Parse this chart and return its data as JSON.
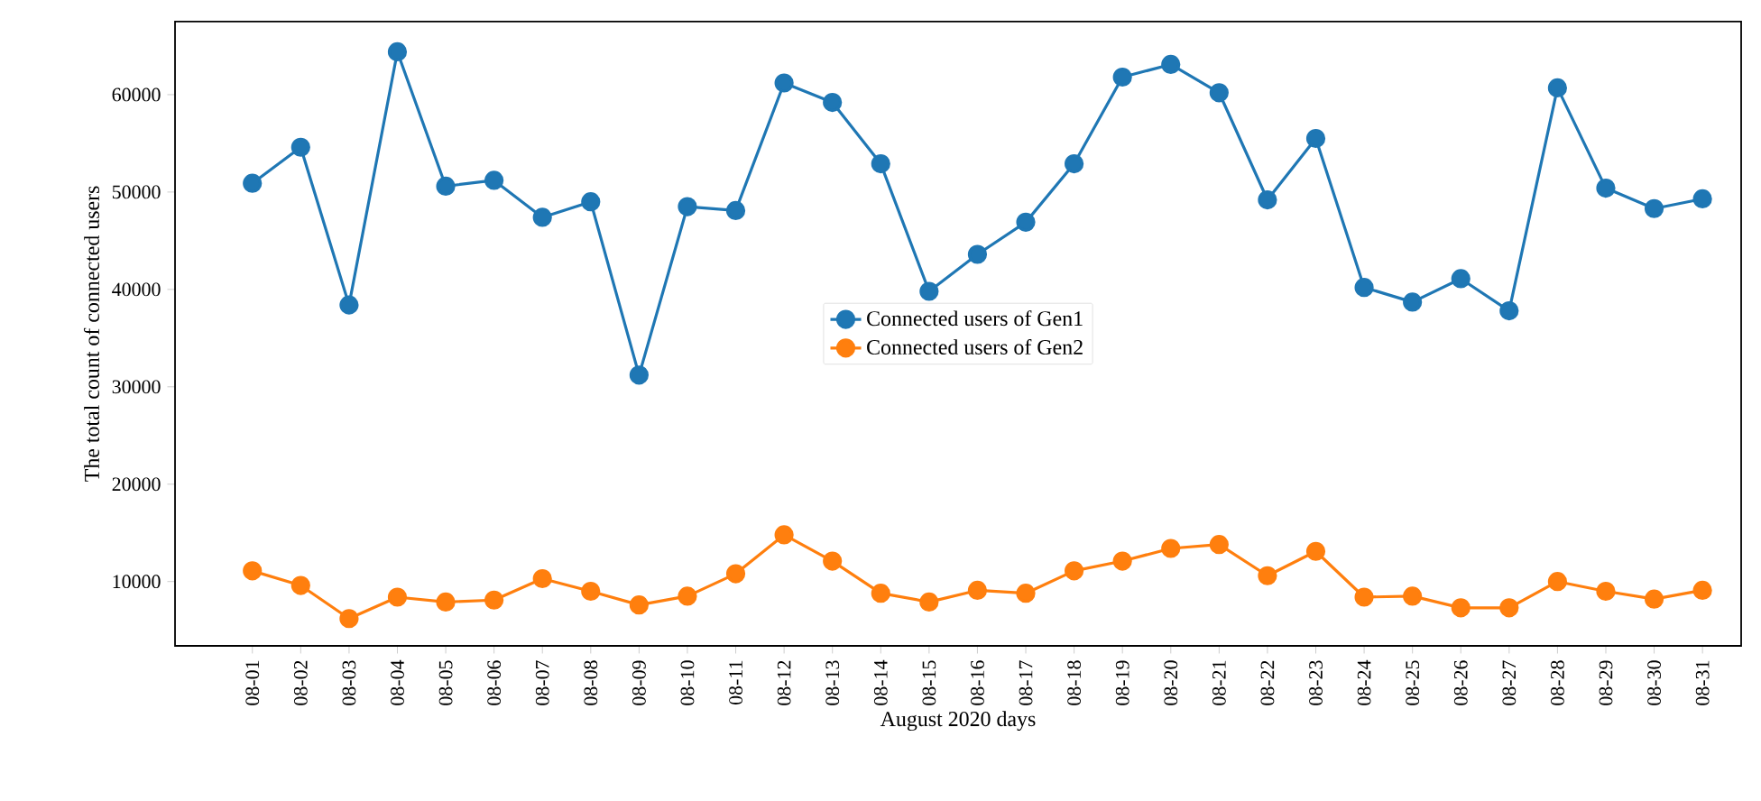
{
  "chart_data": {
    "type": "line",
    "xlabel": "August 2020 days",
    "ylabel": "The total count of connected users",
    "categories": [
      "08-01",
      "08-02",
      "08-03",
      "08-04",
      "08-05",
      "08-06",
      "08-07",
      "08-08",
      "08-09",
      "08-10",
      "08-11",
      "08-12",
      "08-13",
      "08-14",
      "08-15",
      "08-16",
      "08-17",
      "08-18",
      "08-19",
      "08-20",
      "08-21",
      "08-22",
      "08-23",
      "08-24",
      "08-25",
      "08-26",
      "08-27",
      "08-28",
      "08-29",
      "08-30",
      "08-31"
    ],
    "series": [
      {
        "name": "Connected users of Gen1",
        "color": "#1f77b4",
        "values": [
          50900,
          54600,
          38400,
          64400,
          50600,
          51200,
          47400,
          49000,
          31200,
          48500,
          48100,
          61200,
          59200,
          52900,
          39800,
          43600,
          46900,
          52900,
          61800,
          63100,
          60200,
          49200,
          55500,
          40200,
          38700,
          41100,
          37800,
          60700,
          50400,
          48300,
          49300
        ]
      },
      {
        "name": "Connected users of Gen2",
        "color": "#ff7f0e",
        "values": [
          11100,
          9600,
          6200,
          8400,
          7900,
          8100,
          10300,
          9000,
          7600,
          8500,
          10800,
          14800,
          12100,
          8800,
          7900,
          9100,
          8800,
          11100,
          12100,
          13400,
          13800,
          10600,
          13100,
          8400,
          8500,
          7300,
          7300,
          10000,
          9000,
          8200,
          9100
        ]
      }
    ],
    "ylim": [
      3400,
      67500
    ],
    "yticks": [
      10000,
      20000,
      30000,
      40000,
      50000,
      60000
    ],
    "grid": false,
    "legend": "center",
    "marker": "circle",
    "line_style": "solid"
  }
}
